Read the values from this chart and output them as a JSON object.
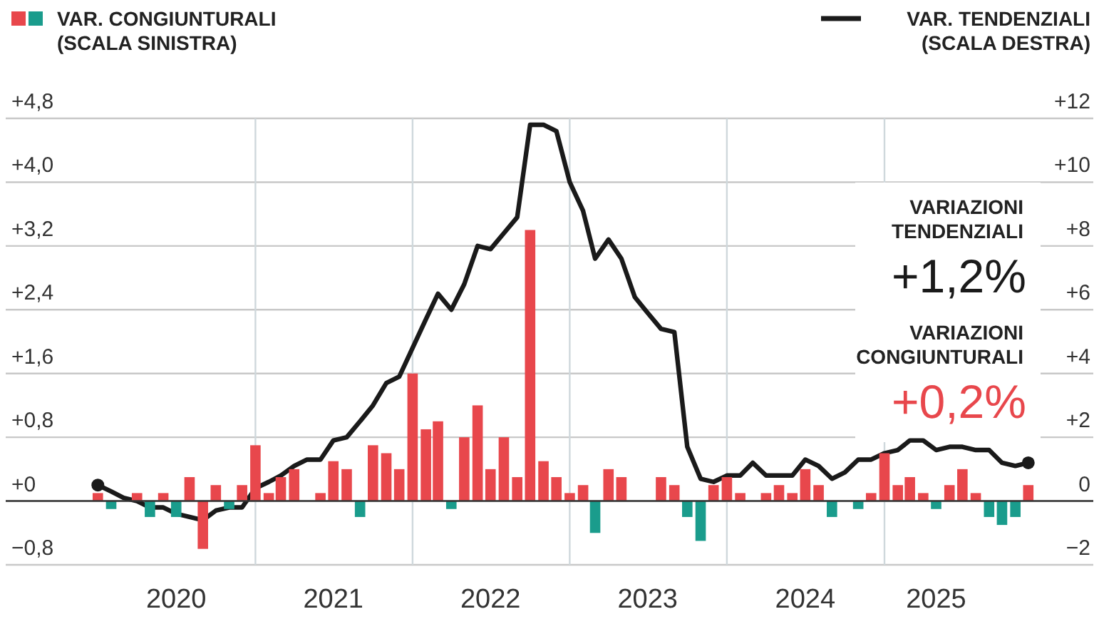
{
  "chart_data": {
    "type": "bar",
    "x": [
      "2020-01",
      "2020-02",
      "2020-03",
      "2020-04",
      "2020-05",
      "2020-06",
      "2020-07",
      "2020-08",
      "2020-09",
      "2020-10",
      "2020-11",
      "2020-12",
      "2021-01",
      "2021-02",
      "2021-03",
      "2021-04",
      "2021-05",
      "2021-06",
      "2021-07",
      "2021-08",
      "2021-09",
      "2021-10",
      "2021-11",
      "2021-12",
      "2022-01",
      "2022-02",
      "2022-03",
      "2022-04",
      "2022-05",
      "2022-06",
      "2022-07",
      "2022-08",
      "2022-09",
      "2022-10",
      "2022-11",
      "2022-12",
      "2023-01",
      "2023-02",
      "2023-03",
      "2023-04",
      "2023-05",
      "2023-06",
      "2023-07",
      "2023-08",
      "2023-09",
      "2023-10",
      "2023-11",
      "2023-12",
      "2024-01",
      "2024-02",
      "2024-03",
      "2024-04",
      "2024-05",
      "2024-06",
      "2024-07",
      "2024-08",
      "2024-09",
      "2024-10",
      "2024-11",
      "2024-12",
      "2025-01",
      "2025-02",
      "2025-03",
      "2025-04",
      "2025-05",
      "2025-06",
      "2025-07",
      "2025-08",
      "2025-09",
      "2025-10",
      "2025-11",
      "2025-12"
    ],
    "series": [
      {
        "name": "VAR. CONGIUNTURALI (SCALA SINISTRA)",
        "colors": [
          "#e8474c",
          "#1a9c8c",
          "#e8474c",
          "#e8474c",
          "#1a9c8c",
          "#e8474c",
          "#1a9c8c",
          "#e8474c",
          "#e8474c",
          "#e8474c",
          "#1a9c8c",
          "#e8474c",
          "#e8474c",
          "#e8474c",
          "#e8474c",
          "#e8474c",
          "#e8474c",
          "#e8474c",
          "#e8474c",
          "#e8474c",
          "#1a9c8c",
          "#e8474c",
          "#e8474c",
          "#e8474c",
          "#e8474c",
          "#e8474c",
          "#e8474c",
          "#1a9c8c",
          "#e8474c",
          "#e8474c",
          "#e8474c",
          "#e8474c",
          "#e8474c",
          "#e8474c",
          "#e8474c",
          "#e8474c",
          "#e8474c",
          "#e8474c",
          "#1a9c8c",
          "#e8474c",
          "#e8474c",
          "#e8474c",
          "#e8474c",
          "#e8474c",
          "#e8474c",
          "#1a9c8c",
          "#1a9c8c",
          "#e8474c",
          "#e8474c",
          "#e8474c",
          "#e8474c",
          "#e8474c",
          "#e8474c",
          "#e8474c",
          "#e8474c",
          "#e8474c",
          "#1a9c8c",
          "#e8474c",
          "#1a9c8c",
          "#e8474c",
          "#e8474c",
          "#e8474c",
          "#e8474c",
          "#e8474c",
          "#1a9c8c",
          "#e8474c",
          "#e8474c",
          "#e8474c",
          "#1a9c8c",
          "#1a9c8c",
          "#1a9c8c",
          "#e8474c"
        ],
        "values": [
          0.1,
          -0.1,
          null,
          0.1,
          -0.2,
          0.1,
          -0.2,
          0.3,
          -0.6,
          0.2,
          -0.1,
          0.2,
          0.7,
          0.1,
          0.3,
          0.4,
          0,
          0.1,
          0.5,
          0.4,
          -0.2,
          0.7,
          0.6,
          0.4,
          1.6,
          0.9,
          1.0,
          -0.1,
          0.8,
          1.2,
          0.4,
          0.8,
          0.3,
          3.4,
          0.5,
          0.3,
          0.1,
          0.2,
          -0.4,
          0.4,
          0.3,
          0,
          0,
          0.3,
          0.2,
          -0.2,
          -0.5,
          0.2,
          0.3,
          0.1,
          0,
          0.1,
          0.2,
          0.1,
          0.4,
          0.2,
          -0.2,
          0,
          -0.1,
          0.1,
          0.6,
          0.2,
          0.3,
          0.1,
          -0.1,
          0.2,
          0.4,
          0.1,
          -0.2,
          -0.3,
          -0.2,
          0.2
        ]
      },
      {
        "type": "line",
        "axis": "y2",
        "name": "VAR. TENDENZIALI (SCALA DESTRA)",
        "color": "#1a1a1a",
        "values": [
          0.5,
          0.3,
          0.1,
          0.0,
          -0.2,
          -0.2,
          -0.4,
          -0.5,
          -0.6,
          -0.3,
          -0.2,
          -0.2,
          0.4,
          0.6,
          0.8,
          1.1,
          1.3,
          1.3,
          1.9,
          2.0,
          2.5,
          3.0,
          3.7,
          3.9,
          4.8,
          5.7,
          6.5,
          6.0,
          6.8,
          8.0,
          7.9,
          8.4,
          8.9,
          11.8,
          11.8,
          11.6,
          10.0,
          9.1,
          7.6,
          8.2,
          7.6,
          6.4,
          5.9,
          5.4,
          5.3,
          1.7,
          0.7,
          0.6,
          0.8,
          0.8,
          1.2,
          0.8,
          0.8,
          0.8,
          1.3,
          1.1,
          0.7,
          0.9,
          1.3,
          1.3,
          1.5,
          1.6,
          1.9,
          1.9,
          1.6,
          1.7,
          1.7,
          1.6,
          1.6,
          1.2,
          1.1,
          1.2
        ]
      }
    ],
    "xlim": [
      "2019-06",
      "2026-05"
    ],
    "xticks": [
      {
        "value": "2020-07",
        "label": "2020"
      },
      {
        "value": "2021-07",
        "label": "2021"
      },
      {
        "value": "2022-07",
        "label": "2022"
      },
      {
        "value": "2023-07",
        "label": "2023"
      },
      {
        "value": "2024-07",
        "label": "2024"
      },
      {
        "value": "2025-05",
        "label": "2025"
      }
    ],
    "ylim": [
      -0.8,
      4.8
    ],
    "yticks": [
      {
        "value": -0.8,
        "label": "−0,8"
      },
      {
        "value": 0,
        "label": "+0"
      },
      {
        "value": 0.8,
        "label": "+0,8"
      },
      {
        "value": 1.6,
        "label": "+1,6"
      },
      {
        "value": 2.4,
        "label": "+2,4"
      },
      {
        "value": 3.2,
        "label": "+3,2"
      },
      {
        "value": 4.0,
        "label": "+4,0"
      },
      {
        "value": 4.8,
        "label": "+4,8"
      }
    ],
    "y2lim": [
      -2,
      12
    ],
    "y2ticks": [
      {
        "value": -2,
        "label": "−2"
      },
      0,
      {
        "value": 2,
        "label": "+2"
      },
      {
        "value": 4,
        "label": "+4"
      },
      {
        "value": 6,
        "label": "+6"
      },
      {
        "value": 8,
        "label": "+8"
      },
      {
        "value": 10,
        "label": "+10"
      },
      {
        "value": 12,
        "label": "+12"
      }
    ],
    "grid": "y",
    "ref_lines": [
      {
        "axis": "x",
        "value": "2021-01",
        "color": "#cfd8dc"
      },
      {
        "axis": "x",
        "value": "2022-01",
        "color": "#cfd8dc"
      },
      {
        "axis": "x",
        "value": "2023-01",
        "color": "#cfd8dc"
      },
      {
        "axis": "x",
        "value": "2024-01",
        "color": "#cfd8dc"
      },
      {
        "axis": "x",
        "value": "2025-01",
        "color": "#cfd8dc"
      }
    ],
    "legend": "top",
    "marker": "none",
    "annotations": [
      "VARIAZIONI TENDENZIALI",
      "+1,2%",
      "VARIAZIONI CONGIUNTURALI",
      "+0,2%"
    ]
  }
}
